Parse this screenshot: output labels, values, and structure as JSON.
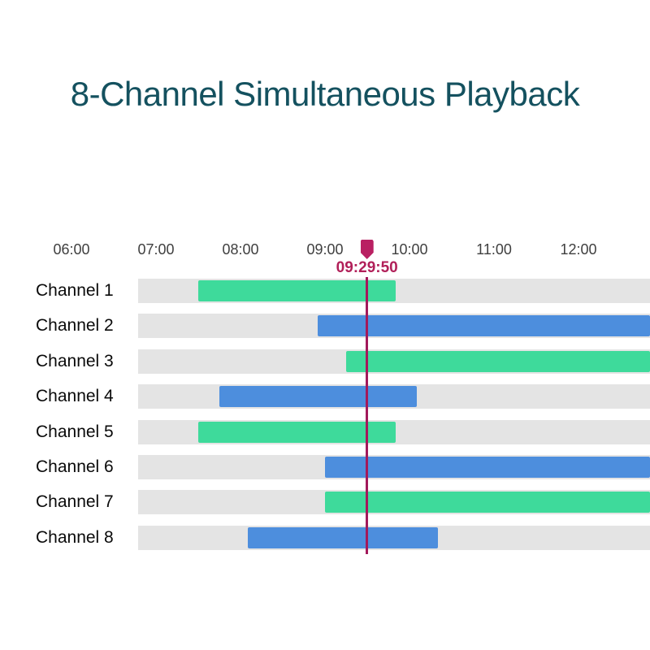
{
  "title": {
    "text": "8-Channel Simultaneous Playback"
  },
  "colors": {
    "title": "#14515F",
    "axis_text": "#3F3F3F",
    "channel_label_text": "#0A0A0A",
    "track": "#E4E4E4",
    "green": "#3EDA9B",
    "blue": "#4D8EDD",
    "playhead_marker": "#B92062",
    "playhead_text": "#B12059",
    "playhead_line": "#A3195B"
  },
  "chart_data": {
    "type": "gantt",
    "title": "8-Channel Simultaneous Playback",
    "x_axis": {
      "tick_labels": [
        "06:00",
        "07:00",
        "08:00",
        "09:00",
        "10:00",
        "11:00",
        "12:00"
      ],
      "unit": "time of day",
      "grid": false
    },
    "playhead": {
      "time": "09:29:50"
    },
    "legend": null,
    "channels": [
      {
        "label": "Channel 1",
        "color": "green",
        "start": "07:30",
        "end": "09:50",
        "continues_past_view": false
      },
      {
        "label": "Channel 2",
        "color": "blue",
        "start": "08:55",
        "end": null,
        "continues_past_view": true
      },
      {
        "label": "Channel 3",
        "color": "green",
        "start": "09:15",
        "end": null,
        "continues_past_view": true
      },
      {
        "label": "Channel 4",
        "color": "blue",
        "start": "07:45",
        "end": "10:05",
        "continues_past_view": false
      },
      {
        "label": "Channel 5",
        "color": "green",
        "start": "07:30",
        "end": "09:50",
        "continues_past_view": false
      },
      {
        "label": "Channel 6",
        "color": "blue",
        "start": "09:00",
        "end": null,
        "continues_past_view": true
      },
      {
        "label": "Channel 7",
        "color": "green",
        "start": "09:00",
        "end": null,
        "continues_past_view": true
      },
      {
        "label": "Channel 8",
        "color": "blue",
        "start": "08:05",
        "end": "10:20",
        "continues_past_view": false
      }
    ]
  }
}
